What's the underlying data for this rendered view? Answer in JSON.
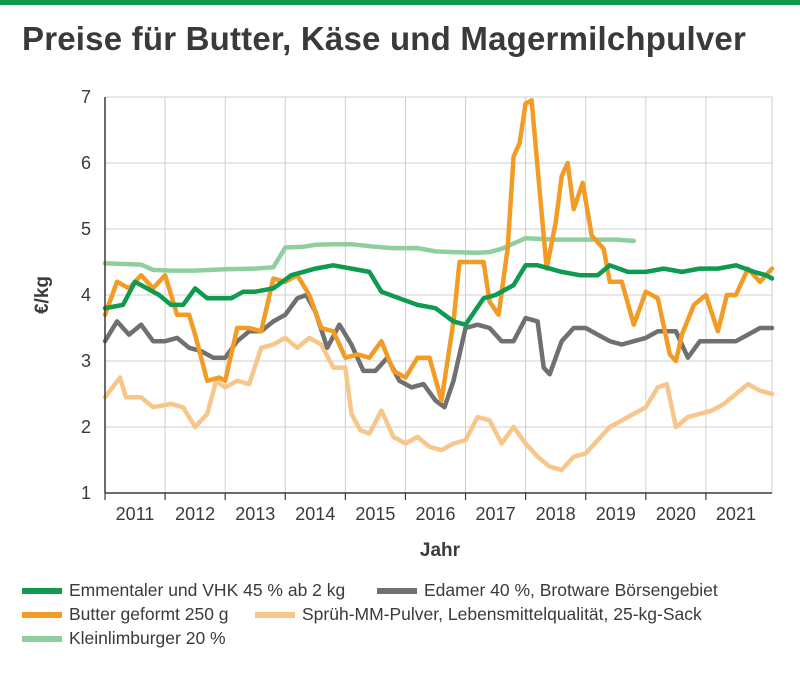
{
  "title": "Preise für Butter, Käse und Magermilchpulver",
  "colors": {
    "accent": "#0f9a4f"
  },
  "chart_data": {
    "type": "line",
    "ylabel": "€/kg",
    "xlabel": "Jahr",
    "ylim": [
      1,
      7
    ],
    "yticks": [
      "1",
      "2",
      "3",
      "4",
      "5",
      "6",
      "7"
    ],
    "xlim": [
      2010.5,
      2021.6
    ],
    "xticks": [
      "2011",
      "2012",
      "2013",
      "2014",
      "2015",
      "2016",
      "2017",
      "2018",
      "2019",
      "2020",
      "2021"
    ],
    "grid": true,
    "legend_position": "bottom",
    "series": [
      {
        "name": "Kleinlimburger 20%",
        "color": "#8fcf9f",
        "x": [
          2010.5,
          2010.8,
          2011.1,
          2011.3,
          2011.6,
          2012.0,
          2012.5,
          2013.0,
          2013.3,
          2013.5,
          2013.8,
          2014.0,
          2014.3,
          2014.6,
          2015.0,
          2015.3,
          2015.7,
          2016.0,
          2016.3,
          2016.7,
          2016.9,
          2017.1,
          2017.3,
          2017.5,
          2018.0,
          2018.5,
          2019.0,
          2019.3
        ],
        "y": [
          4.48,
          4.47,
          4.46,
          4.38,
          4.37,
          4.37,
          4.39,
          4.4,
          4.42,
          4.72,
          4.73,
          4.76,
          4.77,
          4.77,
          4.73,
          4.71,
          4.71,
          4.66,
          4.65,
          4.64,
          4.65,
          4.7,
          4.78,
          4.86,
          4.84,
          4.84,
          4.84,
          4.82
        ]
      },
      {
        "name": "Sprüh-MM-Pulver, Lebensmittelqualität, 25-kg-Sack",
        "color": "#f7c68b",
        "x": [
          2010.5,
          2010.75,
          2010.85,
          2011.1,
          2011.3,
          2011.6,
          2011.8,
          2012.0,
          2012.2,
          2012.35,
          2012.5,
          2012.7,
          2012.9,
          2013.1,
          2013.3,
          2013.5,
          2013.7,
          2013.9,
          2014.1,
          2014.3,
          2014.5,
          2014.6,
          2014.75,
          2014.9,
          2015.1,
          2015.3,
          2015.5,
          2015.7,
          2015.9,
          2016.1,
          2016.3,
          2016.5,
          2016.7,
          2016.9,
          2017.1,
          2017.3,
          2017.5,
          2017.7,
          2017.9,
          2018.1,
          2018.3,
          2018.5,
          2018.7,
          2018.9,
          2019.1,
          2019.3,
          2019.5,
          2019.7,
          2019.85,
          2020.0,
          2020.2,
          2020.4,
          2020.6,
          2020.8,
          2021.0,
          2021.2,
          2021.4,
          2021.6
        ],
        "y": [
          2.45,
          2.75,
          2.45,
          2.45,
          2.3,
          2.35,
          2.3,
          2.0,
          2.2,
          2.7,
          2.6,
          2.7,
          2.65,
          3.2,
          3.25,
          3.35,
          3.2,
          3.35,
          3.25,
          2.9,
          2.9,
          2.2,
          1.95,
          1.9,
          2.25,
          1.85,
          1.75,
          1.85,
          1.7,
          1.65,
          1.75,
          1.8,
          2.15,
          2.1,
          1.75,
          2.0,
          1.75,
          1.55,
          1.4,
          1.35,
          1.55,
          1.6,
          1.8,
          2.0,
          2.1,
          2.2,
          2.3,
          2.6,
          2.65,
          2.0,
          2.15,
          2.2,
          2.25,
          2.35,
          2.5,
          2.65,
          2.55,
          2.5
        ]
      },
      {
        "name": "Edamer 40%, Brotware Börsengebiet",
        "color": "#707070",
        "x": [
          2010.5,
          2010.7,
          2010.9,
          2011.1,
          2011.3,
          2011.5,
          2011.7,
          2011.9,
          2012.1,
          2012.3,
          2012.5,
          2012.7,
          2012.9,
          2013.1,
          2013.3,
          2013.5,
          2013.7,
          2013.85,
          2014.0,
          2014.2,
          2014.4,
          2014.6,
          2014.8,
          2015.0,
          2015.2,
          2015.4,
          2015.6,
          2015.8,
          2016.0,
          2016.15,
          2016.3,
          2016.5,
          2016.7,
          2016.9,
          2017.1,
          2017.3,
          2017.5,
          2017.7,
          2017.8,
          2017.9,
          2018.1,
          2018.3,
          2018.5,
          2018.7,
          2018.9,
          2019.1,
          2019.3,
          2019.5,
          2019.7,
          2019.85,
          2020.0,
          2020.2,
          2020.4,
          2020.6,
          2020.8,
          2021.0,
          2021.2,
          2021.4,
          2021.6
        ],
        "y": [
          3.3,
          3.6,
          3.4,
          3.55,
          3.3,
          3.3,
          3.35,
          3.2,
          3.15,
          3.05,
          3.05,
          3.3,
          3.45,
          3.45,
          3.6,
          3.7,
          3.95,
          4.0,
          3.75,
          3.2,
          3.55,
          3.25,
          2.85,
          2.85,
          3.05,
          2.7,
          2.6,
          2.65,
          2.4,
          2.3,
          2.7,
          3.5,
          3.55,
          3.5,
          3.3,
          3.3,
          3.65,
          3.6,
          2.9,
          2.8,
          3.3,
          3.5,
          3.5,
          3.4,
          3.3,
          3.25,
          3.3,
          3.35,
          3.45,
          3.45,
          3.45,
          3.05,
          3.3,
          3.3,
          3.3,
          3.3,
          3.4,
          3.5,
          3.5
        ]
      },
      {
        "name": "Butter geformt 250g",
        "color": "#f29c26",
        "x": [
          2010.5,
          2010.7,
          2010.9,
          2011.1,
          2011.3,
          2011.5,
          2011.7,
          2011.9,
          2012.0,
          2012.2,
          2012.4,
          2012.5,
          2012.7,
          2012.9,
          2013.1,
          2013.3,
          2013.5,
          2013.7,
          2013.9,
          2014.1,
          2014.3,
          2014.5,
          2014.7,
          2014.9,
          2015.1,
          2015.3,
          2015.5,
          2015.7,
          2015.9,
          2016.1,
          2016.3,
          2016.4,
          2016.5,
          2016.6,
          2016.8,
          2016.9,
          2017.05,
          2017.2,
          2017.3,
          2017.4,
          2017.5,
          2017.6,
          2017.75,
          2017.85,
          2018.0,
          2018.1,
          2018.2,
          2018.3,
          2018.45,
          2018.6,
          2018.8,
          2018.9,
          2019.1,
          2019.3,
          2019.5,
          2019.7,
          2019.9,
          2020.0,
          2020.1,
          2020.3,
          2020.5,
          2020.7,
          2020.85,
          2021.0,
          2021.2,
          2021.4,
          2021.6
        ],
        "y": [
          3.7,
          4.2,
          4.1,
          4.3,
          4.1,
          4.3,
          3.7,
          3.7,
          3.4,
          2.7,
          2.75,
          2.7,
          3.5,
          3.5,
          3.45,
          4.25,
          4.2,
          4.3,
          4.0,
          3.5,
          3.45,
          3.05,
          3.1,
          3.05,
          3.3,
          2.85,
          2.75,
          3.05,
          3.05,
          2.4,
          3.6,
          4.5,
          4.5,
          4.5,
          4.5,
          3.9,
          3.7,
          4.7,
          6.1,
          6.3,
          6.9,
          6.95,
          5.4,
          4.4,
          5.1,
          5.8,
          6.0,
          5.3,
          5.7,
          4.9,
          4.7,
          4.2,
          4.2,
          3.55,
          4.05,
          3.95,
          3.1,
          3.0,
          3.4,
          3.85,
          4.0,
          3.45,
          4.0,
          4.0,
          4.4,
          4.2,
          4.4
        ]
      },
      {
        "name": "Emmentaler und VHK 45% ab 2kg",
        "color": "#0f9a4f",
        "x": [
          2010.5,
          2010.8,
          2011.0,
          2011.2,
          2011.4,
          2011.6,
          2011.8,
          2012.0,
          2012.2,
          2012.4,
          2012.6,
          2012.8,
          2013.0,
          2013.3,
          2013.6,
          2013.8,
          2014.0,
          2014.3,
          2014.6,
          2014.9,
          2015.1,
          2015.4,
          2015.7,
          2016.0,
          2016.3,
          2016.5,
          2016.8,
          2017.0,
          2017.3,
          2017.5,
          2017.7,
          2017.9,
          2018.1,
          2018.4,
          2018.7,
          2018.9,
          2019.2,
          2019.5,
          2019.8,
          2020.1,
          2020.4,
          2020.7,
          2021.0,
          2021.3,
          2021.5,
          2021.6
        ],
        "y": [
          3.8,
          3.85,
          4.2,
          4.1,
          4.0,
          3.85,
          3.85,
          4.1,
          3.95,
          3.95,
          3.95,
          4.05,
          4.05,
          4.1,
          4.3,
          4.35,
          4.4,
          4.45,
          4.4,
          4.35,
          4.05,
          3.95,
          3.85,
          3.8,
          3.6,
          3.55,
          3.95,
          4.0,
          4.15,
          4.45,
          4.45,
          4.4,
          4.35,
          4.3,
          4.3,
          4.45,
          4.35,
          4.35,
          4.4,
          4.35,
          4.4,
          4.4,
          4.45,
          4.35,
          4.3,
          4.25
        ]
      }
    ]
  },
  "legend": [
    {
      "label": "Emmentaler und VHK 45 % ab 2 kg",
      "color": "#0f9a4f"
    },
    {
      "label": "Edamer 40 %, Brotware Börsengebiet",
      "color": "#707070"
    },
    {
      "label": "Butter geformt 250 g",
      "color": "#f29c26"
    },
    {
      "label": "Sprüh-MM-Pulver, Lebensmittelqualität, 25-kg-Sack",
      "color": "#f7c68b"
    },
    {
      "label": "Kleinlimburger 20 %",
      "color": "#8fcf9f"
    }
  ]
}
